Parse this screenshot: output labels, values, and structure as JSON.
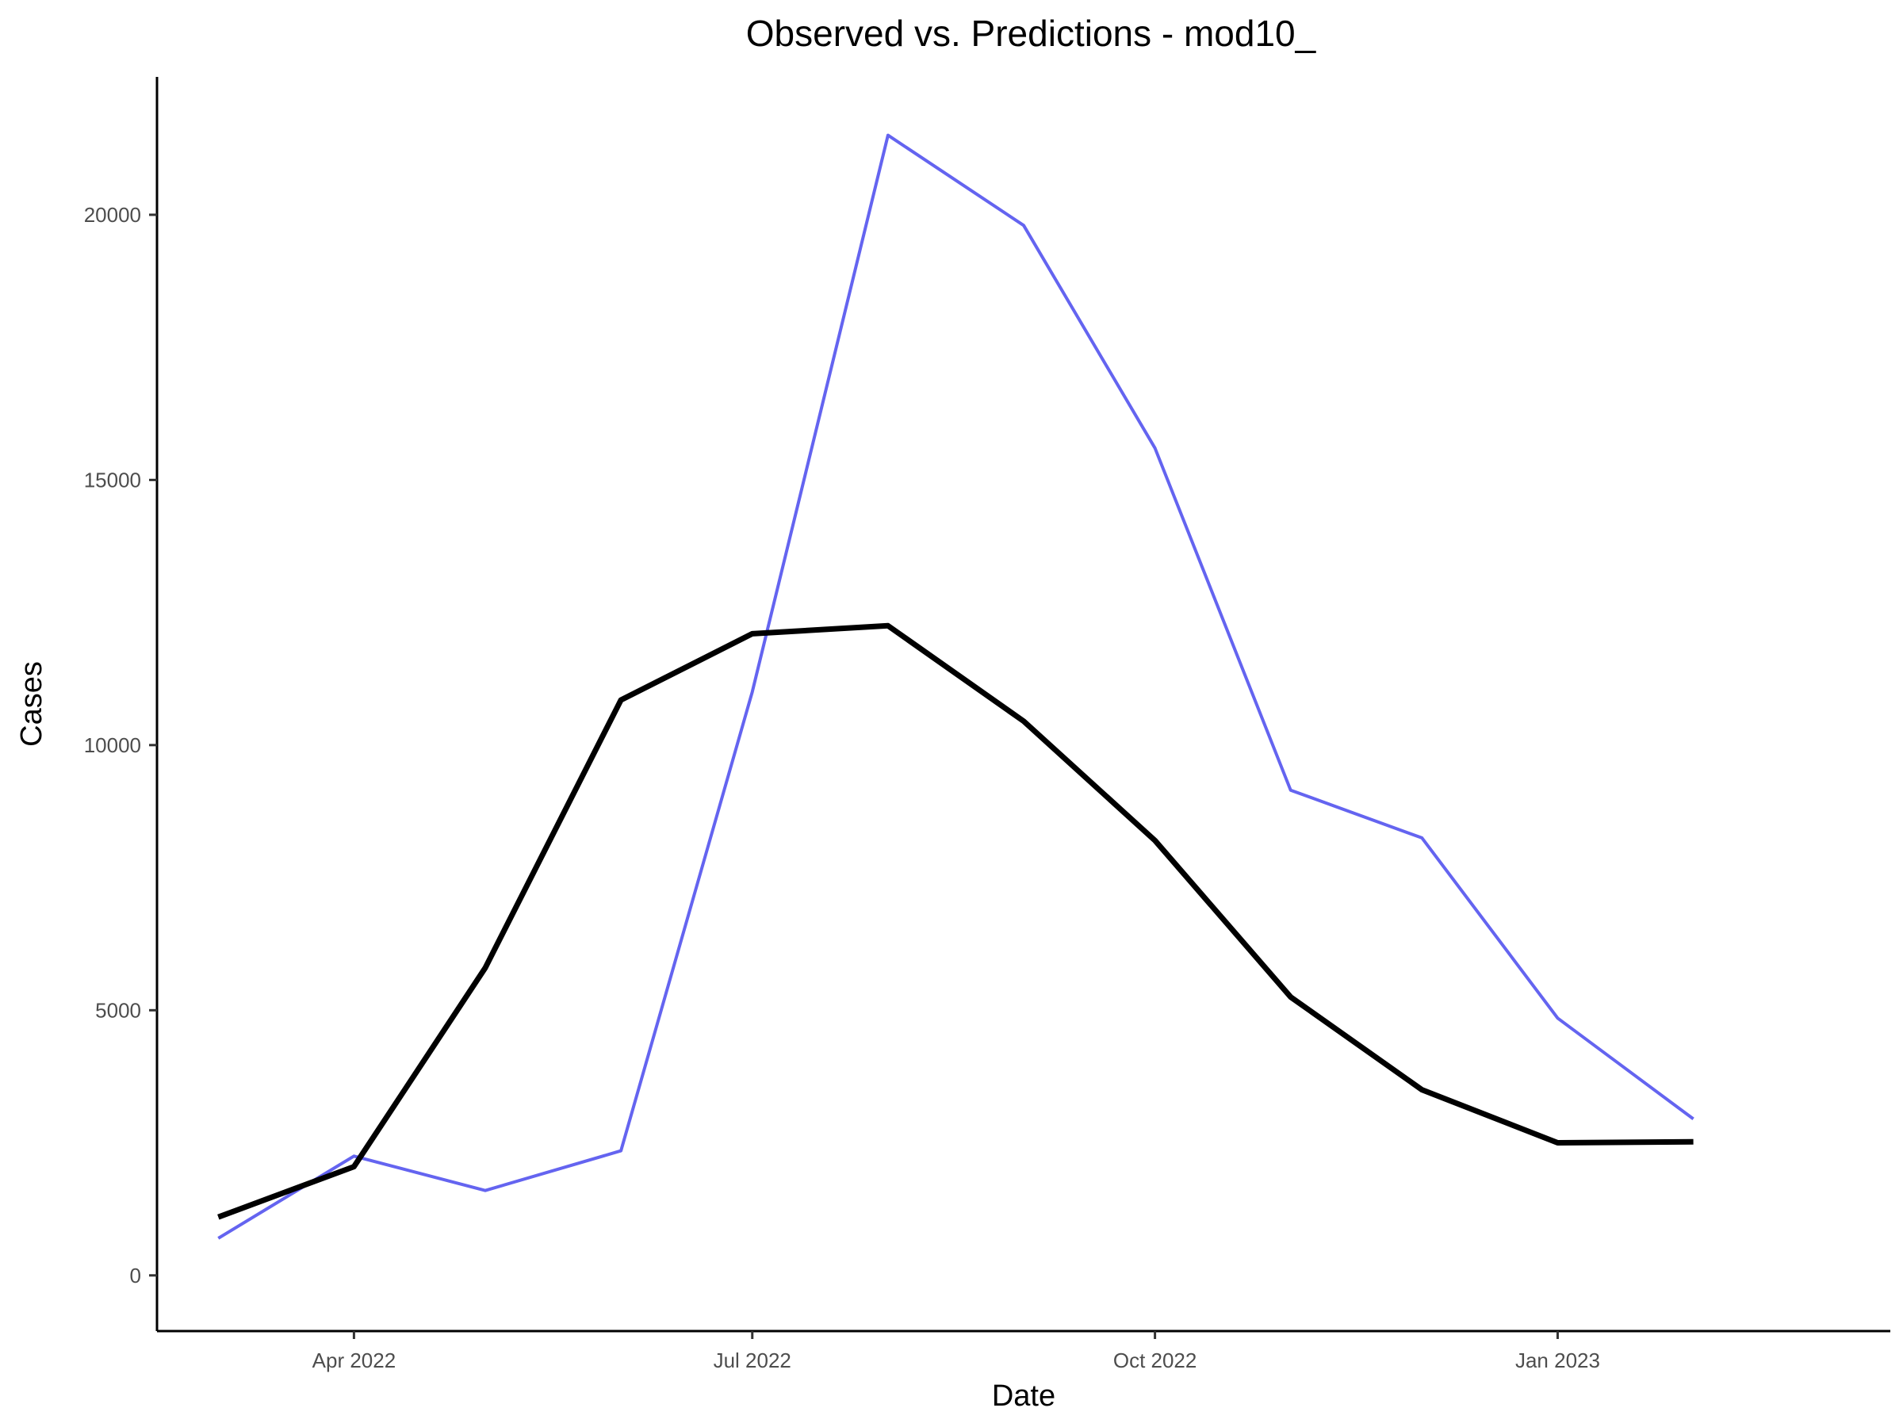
{
  "chart_data": {
    "type": "line",
    "title": "Observed vs. Predictions - mod10_",
    "xlabel": "Date",
    "ylabel": "Cases",
    "x": [
      "2022-03",
      "2022-04",
      "2022-05",
      "2022-06",
      "2022-07",
      "2022-08",
      "2022-09",
      "2022-10",
      "2022-11",
      "2022-12",
      "2023-01",
      "2023-02"
    ],
    "x_ticks": [
      {
        "date": "2022-04",
        "label": "Apr 2022"
      },
      {
        "date": "2022-07",
        "label": "Jul 2022"
      },
      {
        "date": "2022-10",
        "label": "Oct 2022"
      },
      {
        "date": "2023-01",
        "label": "Jan 2023"
      }
    ],
    "y_ticks": [
      0,
      5000,
      10000,
      15000,
      20000
    ],
    "ylim": [
      -1050,
      22600
    ],
    "xlim": [
      "2022-02-15",
      "2023-03-18"
    ],
    "grid": false,
    "legend": "none",
    "series": [
      {
        "color": "#6464f0",
        "values": [
          700,
          2250,
          1600,
          2350,
          11000,
          21500,
          19800,
          15600,
          9150,
          8250,
          4850,
          2950
        ]
      },
      {
        "color": "#000000",
        "values": [
          1100,
          2050,
          5800,
          10850,
          12100,
          12250,
          10450,
          8200,
          5250,
          3500,
          2500,
          2520
        ]
      }
    ]
  }
}
